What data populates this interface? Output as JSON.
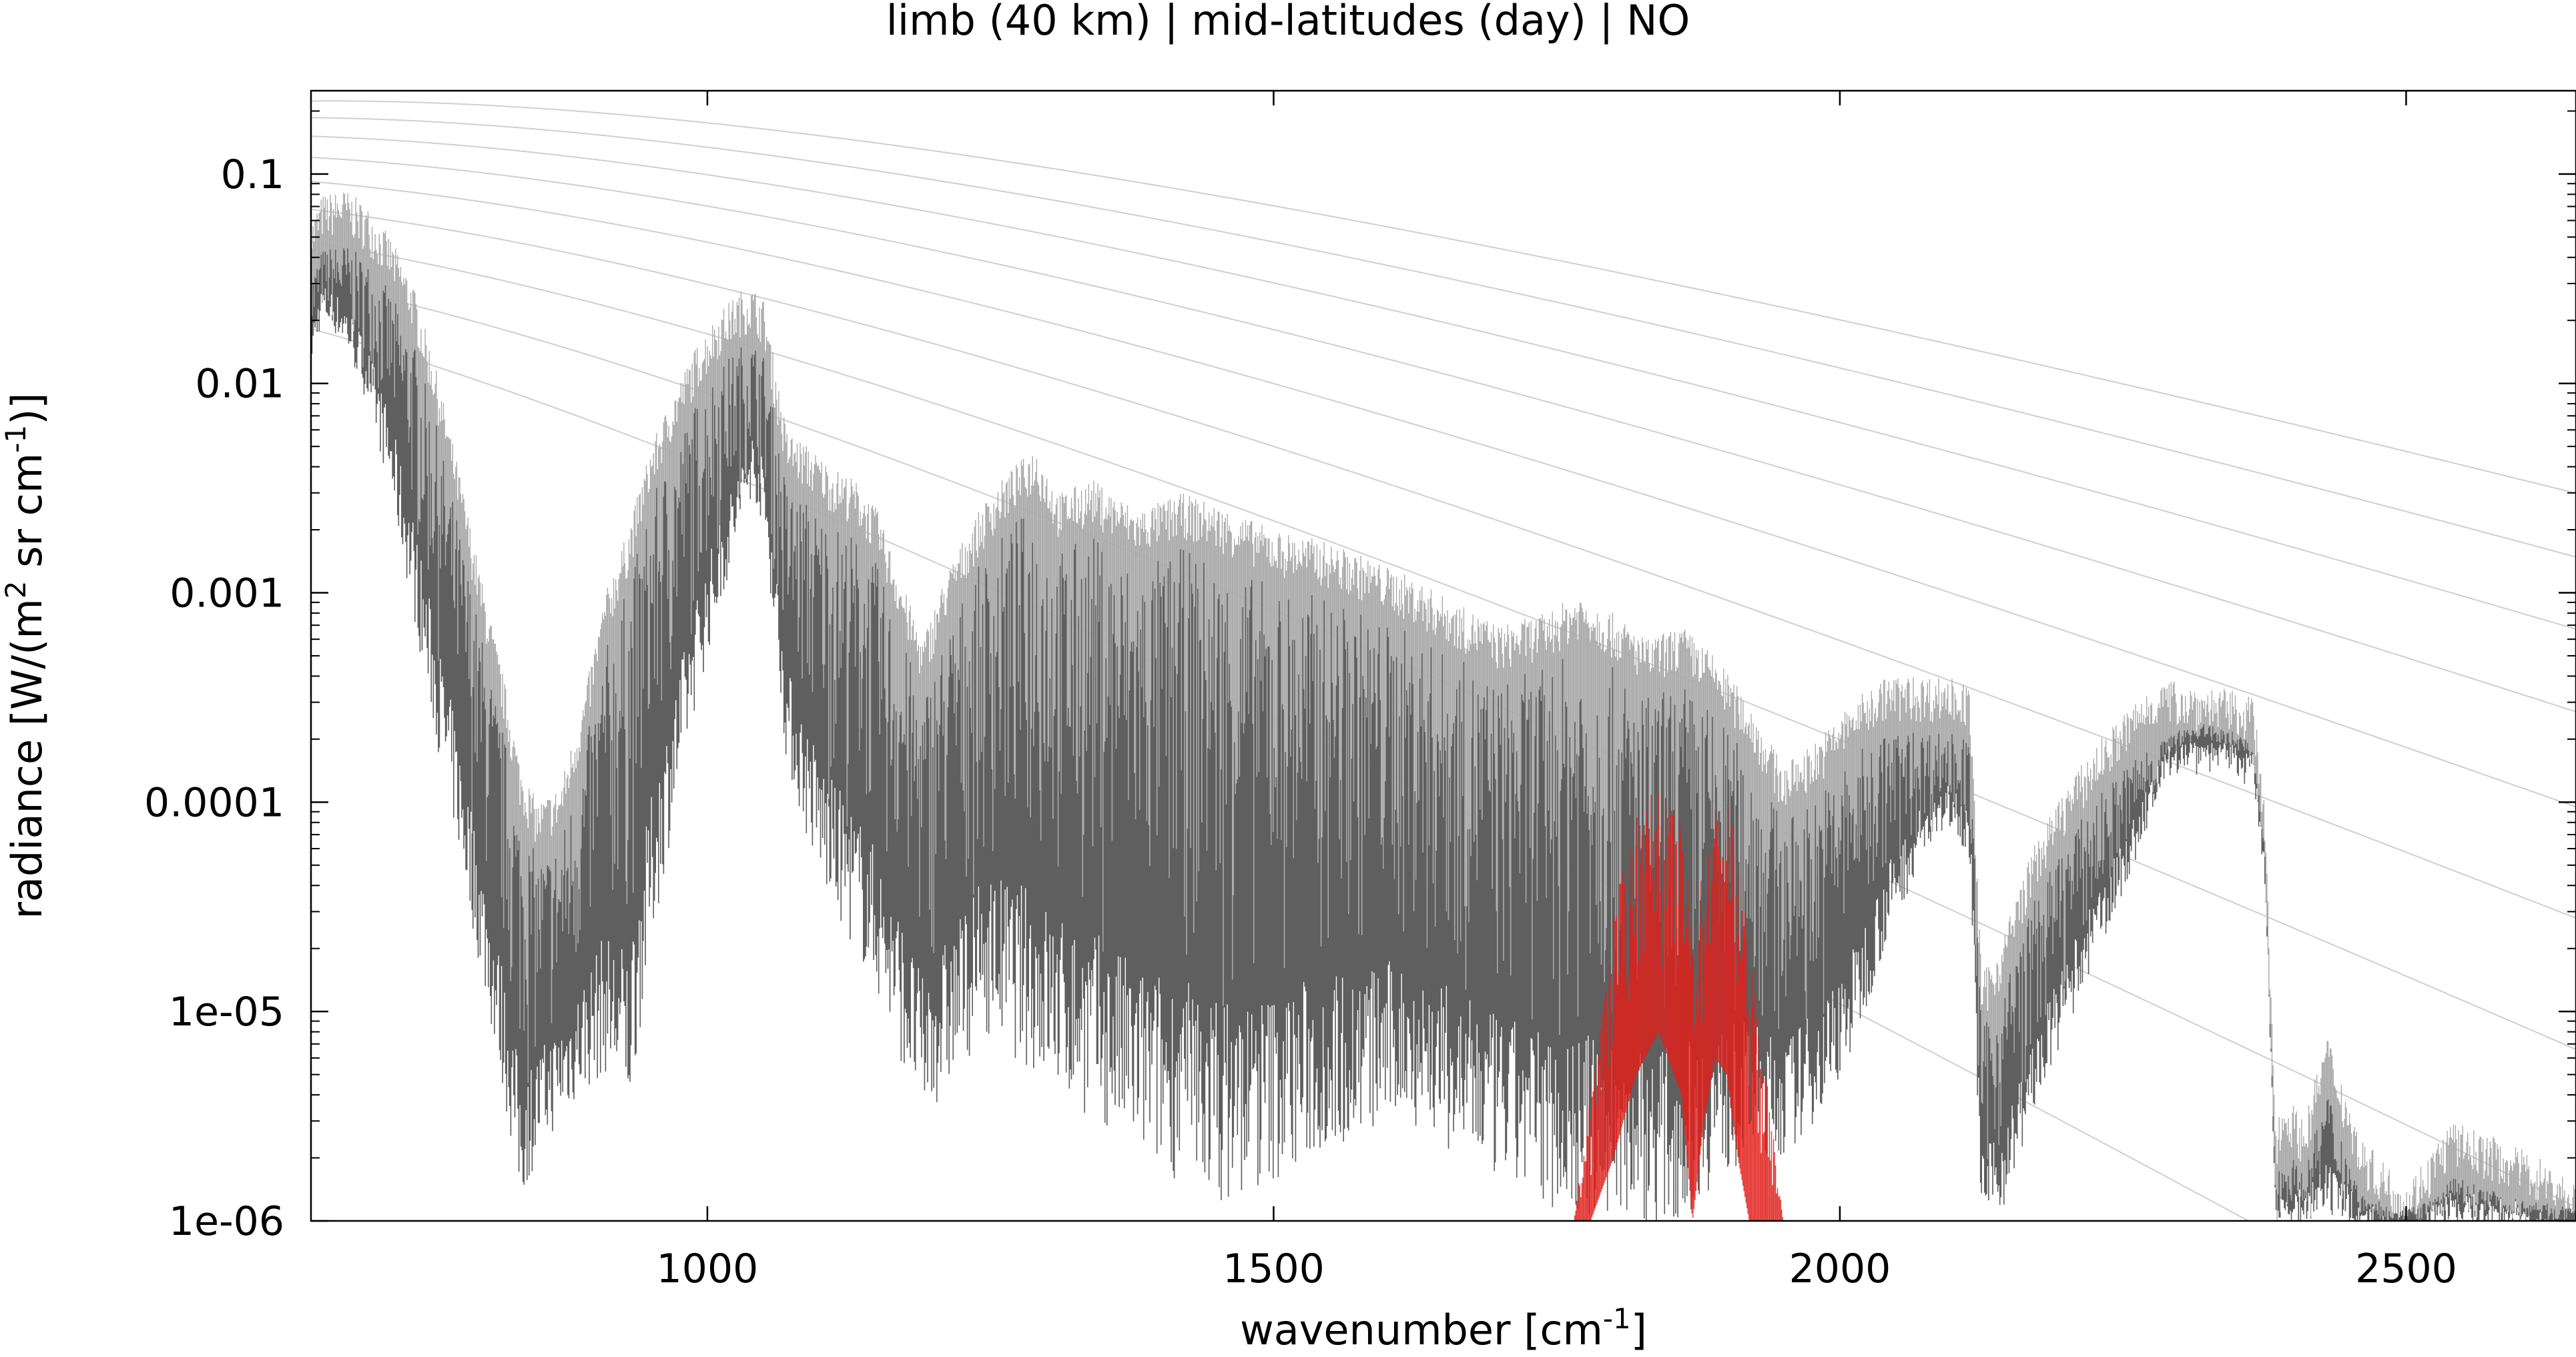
{
  "title": "limb (40 km) | mid-latitudes (day) | NO",
  "chart_data": {
    "type": "line",
    "title": "limb (40 km) | mid-latitudes (day) | NO",
    "xlabel": {
      "base": "wavenumber [cm",
      "sup": "-1",
      "tail": "]"
    },
    "ylabel": {
      "p1": "radiance [W/(m",
      "sup1": "2",
      "p2": " sr cm",
      "sup2": "-1",
      "p3": ")]"
    },
    "xlim": [
      650,
      2650
    ],
    "ylim": [
      1e-06,
      0.25
    ],
    "yscale": "log",
    "x_ticks": [
      1000,
      1500,
      2000,
      2500
    ],
    "x_tick_labels": [
      "1000",
      "1500",
      "2000",
      "2500"
    ],
    "y_ticks": [
      1e-06,
      1e-05,
      0.0001,
      0.001,
      0.01,
      0.1
    ],
    "y_tick_labels": [
      "1e-06",
      "1e-05",
      "0.0001",
      "0.001",
      "0.01",
      "0.1"
    ],
    "grid": false,
    "legend": "none",
    "colors": {
      "total_spectrum": "#5f5f5f",
      "total_spectrum_light": "#aaaaaa",
      "no_spectrum": "#e0201c",
      "planck_curves": "#cfcfcf"
    },
    "series": [
      {
        "role": "total radiance envelope (upper)",
        "x": [
          650,
          660,
          680,
          700,
          720,
          740,
          760,
          780,
          800,
          820,
          835,
          850,
          870,
          890,
          910,
          930,
          950,
          970,
          990,
          1010,
          1030,
          1040,
          1050,
          1060,
          1070,
          1090,
          1110,
          1130,
          1150,
          1170,
          1190,
          1210,
          1230,
          1250,
          1270,
          1290,
          1310,
          1340,
          1380,
          1420,
          1460,
          1500,
          1540,
          1580,
          1620,
          1660,
          1700,
          1740,
          1770,
          1800,
          1830,
          1860,
          1890,
          1920,
          1950,
          1980,
          2010,
          2040,
          2070,
          2100,
          2115,
          2125,
          2140,
          2170,
          2200,
          2230,
          2260,
          2280,
          2300,
          2320,
          2350,
          2365,
          2375,
          2385,
          2395,
          2410,
          2430,
          2460,
          2500,
          2540,
          2580,
          2620,
          2650
        ],
        "y": [
          0.06,
          0.08,
          0.085,
          0.07,
          0.05,
          0.03,
          0.012,
          0.004,
          0.0012,
          0.0004,
          0.00015,
          0.0001,
          0.00012,
          0.0003,
          0.001,
          0.002,
          0.005,
          0.009,
          0.015,
          0.022,
          0.028,
          0.029,
          0.025,
          0.012,
          0.006,
          0.005,
          0.004,
          0.0035,
          0.0025,
          0.0012,
          0.0006,
          0.0012,
          0.002,
          0.003,
          0.004,
          0.005,
          0.003,
          0.0035,
          0.0025,
          0.003,
          0.0025,
          0.002,
          0.0018,
          0.0015,
          0.0012,
          0.0009,
          0.0007,
          0.0008,
          0.001,
          0.0008,
          0.0006,
          0.0007,
          0.0005,
          0.0003,
          0.00015,
          0.0002,
          0.0003,
          0.0004,
          0.0004,
          0.0004,
          0.00035,
          1.5e-05,
          2e-05,
          6e-05,
          0.00012,
          0.0002,
          0.0003,
          0.00038,
          0.00038,
          0.00036,
          0.00034,
          0.00032,
          0.0001,
          3e-06,
          4e-06,
          3e-06,
          8e-06,
          2.5e-06,
          1.5e-06,
          3e-06,
          2.5e-06,
          2e-06,
          1.5e-06
        ]
      },
      {
        "role": "total radiance envelope (lower)",
        "x": [
          650,
          660,
          680,
          700,
          720,
          740,
          760,
          780,
          800,
          820,
          835,
          850,
          870,
          890,
          910,
          930,
          950,
          970,
          990,
          1010,
          1030,
          1040,
          1050,
          1060,
          1070,
          1090,
          1110,
          1130,
          1150,
          1170,
          1190,
          1210,
          1230,
          1250,
          1270,
          1290,
          1310,
          1340,
          1380,
          1420,
          1460,
          1500,
          1540,
          1580,
          1620,
          1660,
          1700,
          1740,
          1770,
          1800,
          1830,
          1860,
          1890,
          1920,
          1950,
          1980,
          2010,
          2040,
          2070,
          2100,
          2115,
          2125,
          2140,
          2170,
          2200,
          2230,
          2260,
          2280,
          2300,
          2320,
          2350,
          2365,
          2375,
          2385,
          2395,
          2410,
          2430,
          2460,
          2500,
          2540,
          2580,
          2620,
          2650
        ],
        "y": [
          0.012,
          0.02,
          0.015,
          0.008,
          0.003,
          0.0008,
          0.0002,
          6e-05,
          1.5e-05,
          4e-06,
          1.2e-06,
          2e-06,
          3e-06,
          4e-06,
          5e-06,
          3e-06,
          2e-05,
          8e-05,
          0.0003,
          0.0008,
          0.002,
          0.003,
          0.002,
          0.0006,
          0.00015,
          6e-05,
          3e-05,
          2e-05,
          1.2e-05,
          6e-06,
          3e-06,
          4e-06,
          6e-06,
          8e-06,
          6e-06,
          5e-06,
          4e-06,
          3e-06,
          2e-06,
          1.5e-06,
          1.2e-06,
          1.5e-06,
          2e-06,
          2.5e-06,
          3e-06,
          2e-06,
          1.5e-06,
          1.2e-06,
          1e-06,
          1e-06,
          1e-06,
          1e-06,
          1.5e-06,
          2e-06,
          2e-06,
          3e-06,
          6e-06,
          2e-05,
          5e-05,
          8e-05,
          5e-05,
          1e-06,
          1e-06,
          3e-06,
          8e-06,
          2e-05,
          5e-05,
          0.0001,
          0.00018,
          0.0002,
          0.00018,
          0.00015,
          5e-05,
          1e-06,
          1e-06,
          1e-06,
          1e-06,
          1e-06,
          1e-06,
          1e-06,
          1e-06,
          1e-06,
          1e-06
        ]
      },
      {
        "role": "NO contribution envelope (upper)",
        "x": [
          1765,
          1780,
          1800,
          1820,
          1840,
          1860,
          1870,
          1880,
          1890,
          1900,
          1910,
          1920,
          1935,
          1950
        ],
        "y": [
          1e-06,
          4e-06,
          3e-05,
          9e-05,
          0.00012,
          8e-05,
          3e-05,
          5e-05,
          0.0001,
          0.00011,
          6e-05,
          2e-05,
          5e-06,
          1e-06
        ]
      },
      {
        "role": "NO contribution envelope (lower)",
        "x": [
          1765,
          1780,
          1800,
          1820,
          1840,
          1860,
          1870,
          1880,
          1890,
          1900,
          1910,
          1920,
          1935,
          1950
        ],
        "y": [
          1e-06,
          1e-06,
          2e-06,
          5e-06,
          8e-06,
          4e-06,
          1e-06,
          3e-06,
          6e-06,
          5e-06,
          2e-06,
          1e-06,
          1e-06,
          1e-06
        ]
      }
    ],
    "reference_curves": {
      "description": "Planck radiance reference curves for a range of temperatures",
      "temperatures_K": [
        180,
        200,
        220,
        240,
        260,
        280,
        300,
        320,
        340
      ]
    }
  }
}
